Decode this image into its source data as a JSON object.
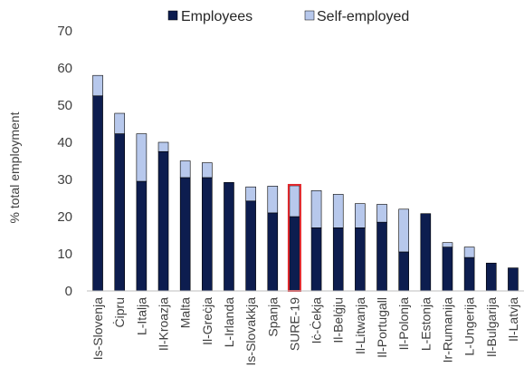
{
  "chart_data": {
    "type": "bar",
    "stacked": true,
    "ylabel": "% total employment",
    "xlabel": "",
    "ylim": [
      0,
      70
    ],
    "yticks": [
      0,
      10,
      20,
      30,
      40,
      50,
      60,
      70
    ],
    "grid": false,
    "legend_position": "top",
    "categories": [
      "Is-Slovenja",
      "Ċipru",
      "L-Italja",
      "Il-Kroazja",
      "Malta",
      "Il-Greċja",
      "L-Irlanda",
      "Is-Slovakkja",
      "Spanja",
      "SURE-19",
      "Iċ-Ċekja",
      "Il-Belġju",
      "Il-Litwanja",
      "Il-Portugall",
      "Il-Polonja",
      "L-Estonja",
      "Ir-Rumanija",
      "L-Ungerija",
      "Il-Bulgarija",
      "Il-Latvja"
    ],
    "highlight_category": "SURE-19",
    "highlight_color": "#e0262b",
    "series": [
      {
        "name": "Employees",
        "color": "#0d1d4f",
        "values": [
          52.5,
          42.3,
          29.5,
          37.5,
          30.5,
          30.5,
          29.2,
          24.2,
          21.0,
          20.0,
          17.0,
          17.0,
          17.0,
          18.5,
          10.5,
          20.8,
          11.8,
          9.0,
          7.5,
          6.2
        ]
      },
      {
        "name": "Self-employed",
        "color": "#b7c8ec",
        "values": [
          5.5,
          5.5,
          12.8,
          2.5,
          4.5,
          4.0,
          0,
          3.8,
          7.2,
          8.3,
          10.0,
          9.0,
          6.5,
          4.8,
          11.5,
          0,
          1.2,
          2.8,
          0,
          0
        ]
      }
    ]
  }
}
